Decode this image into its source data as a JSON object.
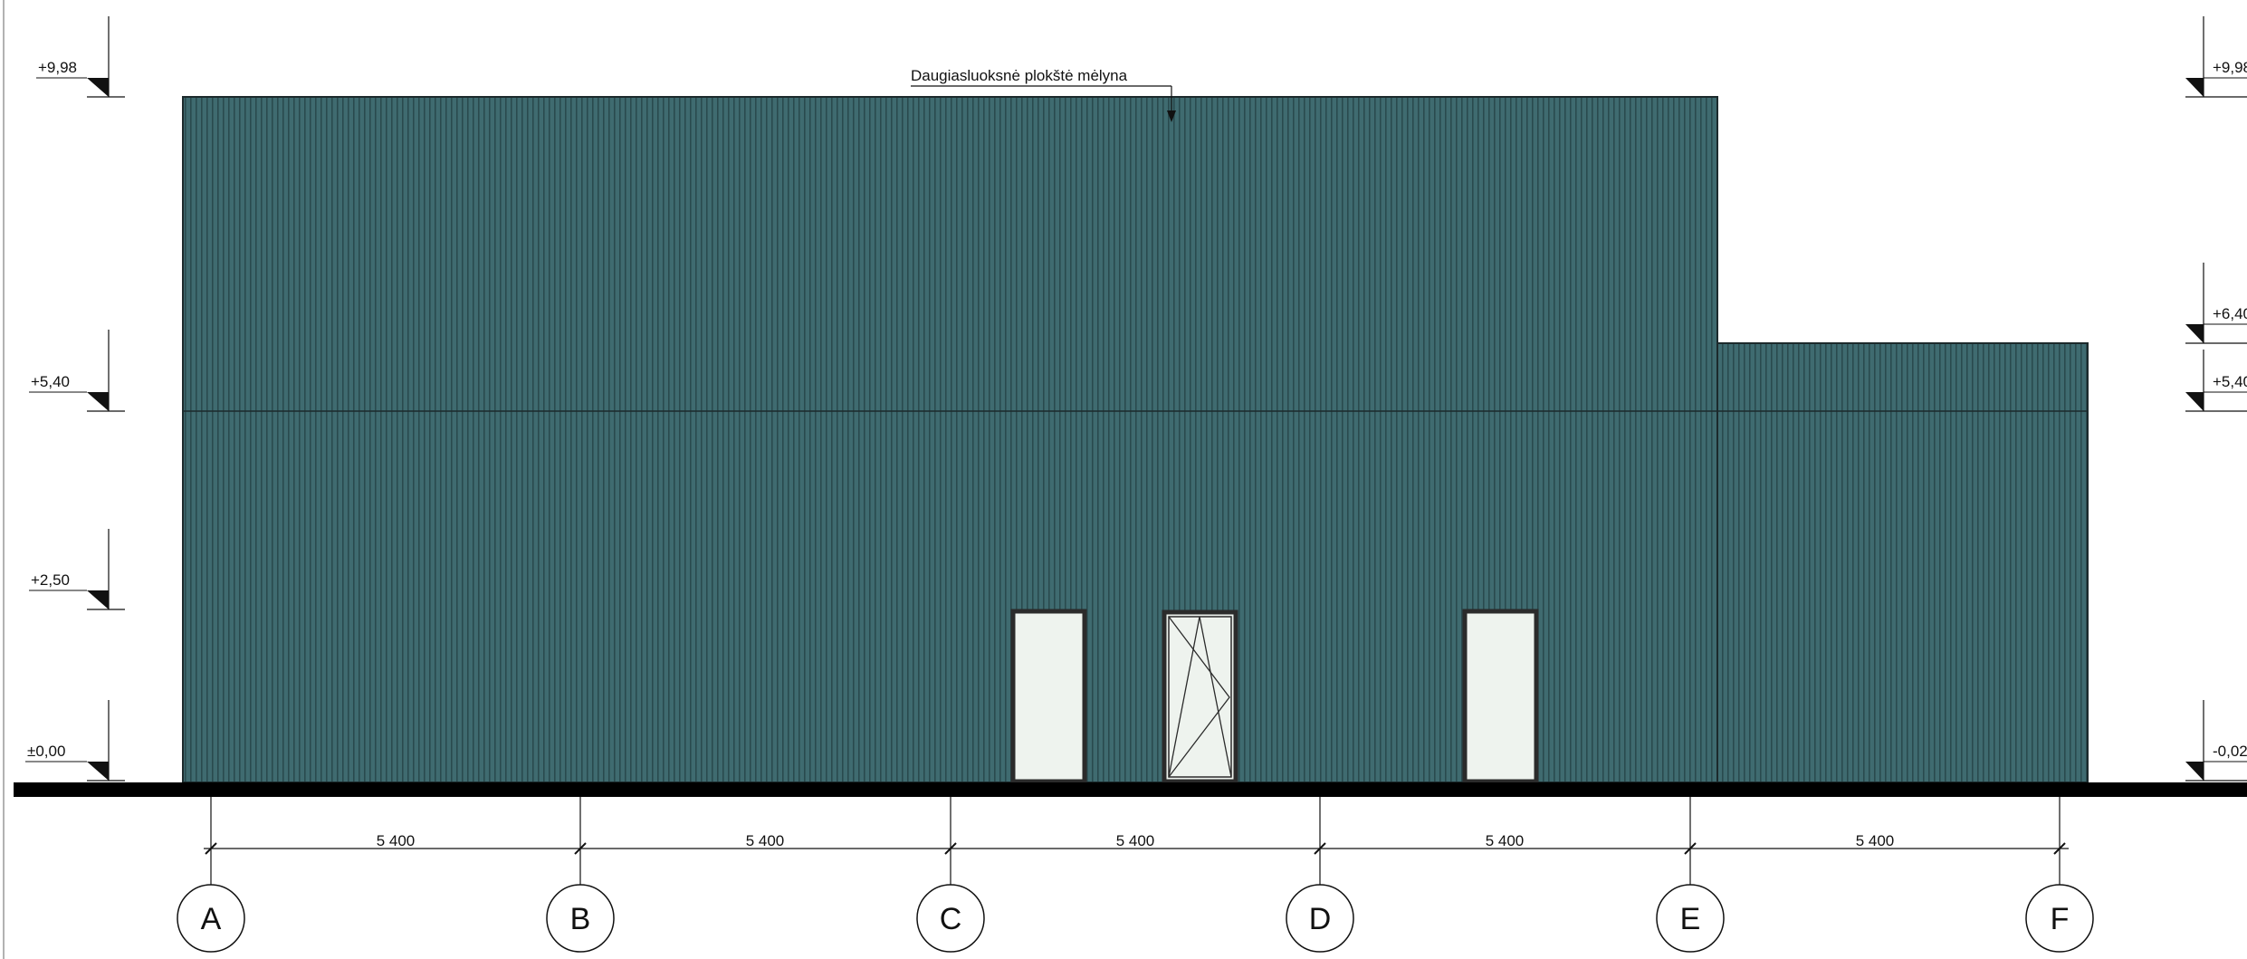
{
  "annotation": {
    "text": "Daugiasluoksnė plokštė mėlyna"
  },
  "levels_left": [
    {
      "label": "+9,98"
    },
    {
      "label": "+5,40"
    },
    {
      "label": "+2,50"
    },
    {
      "label": "±0,00"
    }
  ],
  "levels_right": [
    {
      "label": "+9,98"
    },
    {
      "label": "+6,40"
    },
    {
      "label": "+5,40"
    },
    {
      "label": "-0,02"
    }
  ],
  "dimensions": [
    "5 400",
    "5 400",
    "5 400",
    "5 400",
    "5 400"
  ],
  "axes": [
    "A",
    "B",
    "C",
    "D",
    "E",
    "F"
  ],
  "colors": {
    "cladding": "#3f6b70",
    "rib": "#2a4a4e",
    "glass": "#eef3ee",
    "frame": "#2b2b2b",
    "ground": "#000000"
  }
}
